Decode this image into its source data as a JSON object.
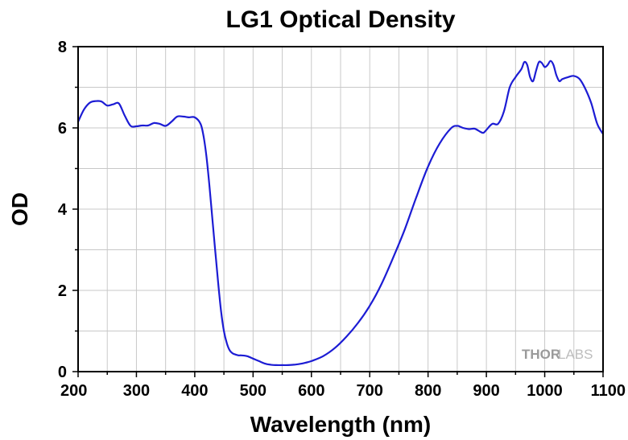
{
  "chart_data": {
    "type": "line",
    "title": "LG1 Optical Density",
    "xlabel": "Wavelength (nm)",
    "ylabel": "OD",
    "xlim": [
      200,
      1100
    ],
    "ylim": [
      0,
      8
    ],
    "x_ticks": [
      200,
      300,
      400,
      500,
      600,
      700,
      800,
      900,
      1000,
      1100
    ],
    "y_ticks": [
      0,
      2,
      4,
      6,
      8
    ],
    "grid": true,
    "line_color": "#1c1cd4",
    "watermark": {
      "part1": "THOR",
      "part2": "LABS"
    },
    "series": [
      {
        "x": [
          200,
          210,
          220,
          230,
          240,
          250,
          260,
          270,
          280,
          290,
          300,
          310,
          320,
          330,
          340,
          350,
          360,
          370,
          380,
          390,
          400,
          410,
          415,
          420,
          425,
          430,
          435,
          440,
          445,
          450,
          455,
          460,
          465,
          470,
          475,
          480,
          490,
          500,
          510,
          520,
          530,
          540,
          550,
          560,
          570,
          580,
          590,
          600,
          620,
          640,
          660,
          680,
          700,
          720,
          740,
          760,
          780,
          800,
          820,
          840,
          850,
          855,
          860,
          870,
          880,
          890,
          895,
          900,
          910,
          920,
          930,
          940,
          950,
          960,
          965,
          970,
          975,
          980,
          985,
          990,
          995,
          1000,
          1005,
          1010,
          1015,
          1020,
          1025,
          1030,
          1040,
          1050,
          1060,
          1070,
          1080,
          1090,
          1100
        ],
        "values": [
          6.15,
          6.45,
          6.62,
          6.66,
          6.65,
          6.55,
          6.58,
          6.6,
          6.3,
          6.05,
          6.04,
          6.06,
          6.06,
          6.12,
          6.1,
          6.05,
          6.15,
          6.28,
          6.28,
          6.26,
          6.26,
          6.1,
          5.8,
          5.3,
          4.6,
          3.8,
          3.0,
          2.2,
          1.5,
          1.0,
          0.7,
          0.52,
          0.45,
          0.42,
          0.4,
          0.4,
          0.38,
          0.32,
          0.26,
          0.2,
          0.17,
          0.16,
          0.16,
          0.16,
          0.17,
          0.19,
          0.22,
          0.26,
          0.38,
          0.58,
          0.86,
          1.2,
          1.62,
          2.15,
          2.8,
          3.5,
          4.3,
          5.05,
          5.62,
          6.0,
          6.05,
          6.03,
          6.0,
          5.97,
          5.98,
          5.9,
          5.88,
          5.95,
          6.1,
          6.1,
          6.4,
          7.0,
          7.25,
          7.45,
          7.62,
          7.55,
          7.25,
          7.15,
          7.4,
          7.62,
          7.6,
          7.5,
          7.55,
          7.65,
          7.55,
          7.3,
          7.15,
          7.2,
          7.25,
          7.28,
          7.2,
          6.95,
          6.6,
          6.1,
          5.85
        ]
      }
    ]
  }
}
